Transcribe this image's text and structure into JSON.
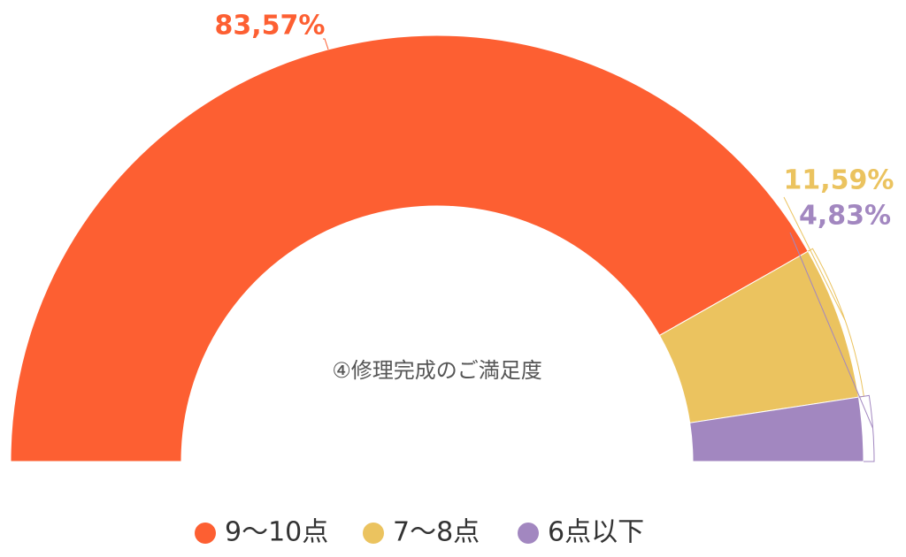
{
  "chart_data": {
    "type": "half-donut",
    "title": "④修理完成のご満足度",
    "categories": [
      "9〜10点",
      "7〜8点",
      "6点以下"
    ],
    "values": [
      83.57,
      11.59,
      4.83
    ],
    "value_labels": [
      "83,57%",
      "11,59%",
      "4,83%"
    ],
    "colors": [
      "#fd5f32",
      "#ebc35f",
      "#a287c0"
    ]
  }
}
